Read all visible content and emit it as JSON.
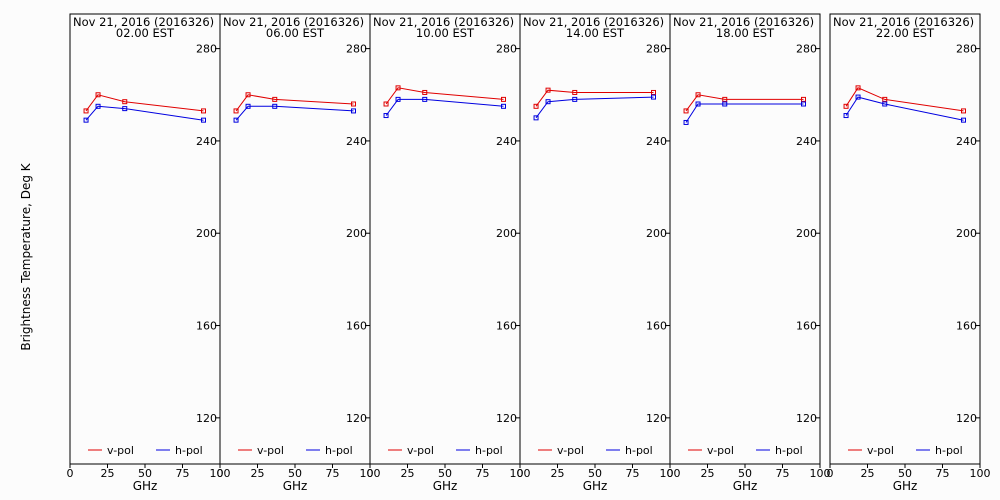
{
  "ylabel": "Brightness Temperature, Deg K",
  "xlabel": "GHz",
  "chart_data": {
    "type": "line",
    "xlabel": "GHz",
    "ylabel": "Brightness Temperature, Deg K",
    "xlim": [
      0,
      100
    ],
    "ylim": [
      100,
      295
    ],
    "xticks": [
      0,
      25,
      50,
      75,
      100
    ],
    "yticks": [
      120,
      160,
      200,
      240,
      280
    ],
    "x": [
      10.7,
      18.7,
      36.5,
      89.0
    ],
    "legend": [
      "v-pol",
      "h-pol"
    ],
    "colors": {
      "v-pol": "#e00000",
      "h-pol": "#0000e0"
    },
    "legend_placement": "bottom",
    "panels": [
      {
        "title_line1": "Nov 21, 2016 (2016326)",
        "title_line2": "02.00  EST",
        "series": [
          {
            "name": "v-pol",
            "values": [
              253,
              260,
              257,
              253
            ]
          },
          {
            "name": "h-pol",
            "values": [
              249,
              255,
              254,
              249
            ]
          }
        ]
      },
      {
        "title_line1": "Nov 21, 2016 (2016326)",
        "title_line2": "06.00  EST",
        "series": [
          {
            "name": "v-pol",
            "values": [
              253,
              260,
              258,
              256
            ]
          },
          {
            "name": "h-pol",
            "values": [
              249,
              255,
              255,
              253
            ]
          }
        ]
      },
      {
        "title_line1": "Nov 21, 2016 (2016326)",
        "title_line2": "10.00  EST",
        "series": [
          {
            "name": "v-pol",
            "values": [
              256,
              263,
              261,
              258
            ]
          },
          {
            "name": "h-pol",
            "values": [
              251,
              258,
              258,
              255
            ]
          }
        ]
      },
      {
        "title_line1": "Nov 21, 2016 (2016326)",
        "title_line2": "14.00  EST",
        "series": [
          {
            "name": "v-pol",
            "values": [
              255,
              262,
              261,
              261
            ]
          },
          {
            "name": "h-pol",
            "values": [
              250,
              257,
              258,
              259
            ]
          }
        ]
      },
      {
        "title_line1": "Nov 21, 2016 (2016326)",
        "title_line2": "18.00  EST",
        "series": [
          {
            "name": "v-pol",
            "values": [
              253,
              260,
              258,
              258
            ]
          },
          {
            "name": "h-pol",
            "values": [
              248,
              256,
              256,
              256
            ]
          }
        ]
      },
      {
        "title_line1": "Nov 21, 2016 (2016326)",
        "title_line2": "22.00  EST",
        "series": [
          {
            "name": "v-pol",
            "values": [
              255,
              263,
              258,
              253
            ]
          },
          {
            "name": "h-pol",
            "values": [
              251,
              259,
              256,
              249
            ]
          }
        ]
      }
    ]
  }
}
